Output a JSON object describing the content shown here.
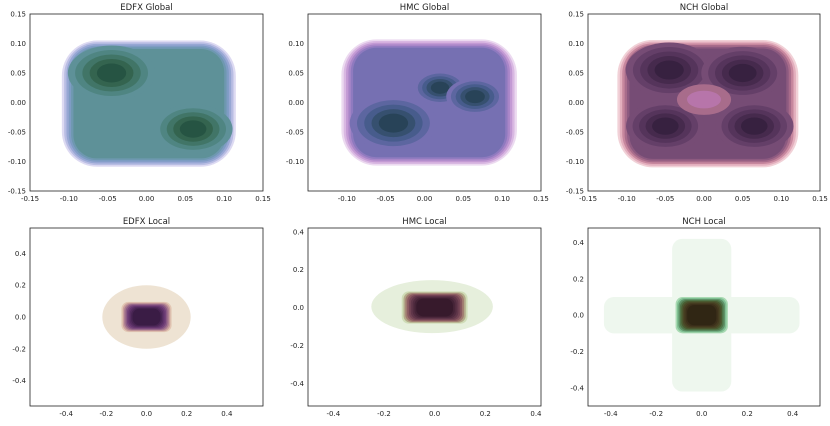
{
  "chart_data": [
    {
      "type": "kde-contour",
      "title": "EDFX Global",
      "xlim": [
        -0.15,
        0.15
      ],
      "ylim": [
        -0.15,
        0.15
      ],
      "xticks": [
        "-0.15",
        "-0.10",
        "-0.05",
        "0.00",
        "0.05",
        "0.10",
        "0.15"
      ],
      "yticks": [
        "-0.15",
        "-0.10",
        "-0.05",
        "0.00",
        "0.05",
        "0.10",
        "0.15"
      ],
      "palette": [
        "#dddaf2",
        "#b9bde3",
        "#97a7d4",
        "#7f9cc4",
        "#6e98b0",
        "#5e9198",
        "#4f8582",
        "#417567",
        "#34644f",
        "#265443"
      ],
      "support": {
        "cx": 0.003,
        "cy": -0.002,
        "rx": 0.112,
        "ry": 0.107
      },
      "modes": [
        {
          "x": -0.045,
          "y": 0.05,
          "w": 1.0
        },
        {
          "x": 0.06,
          "y": -0.045,
          "w": 0.9
        }
      ]
    },
    {
      "type": "kde-contour",
      "title": "HMC Global",
      "xlim": [
        -0.15,
        0.15
      ],
      "ylim": [
        -0.15,
        0.15
      ],
      "xticks": [
        "-0.10",
        "-0.05",
        "0.00",
        "0.05",
        "0.10",
        "0.15"
      ],
      "yticks": [
        "-0.10",
        "-0.05",
        "0.00",
        "0.05",
        "0.10"
      ],
      "palette": [
        "#ecdaf0",
        "#d9b8e2",
        "#c39ad4",
        "#a986c8",
        "#8f7abf",
        "#7670b2",
        "#5c66a0",
        "#475c8c",
        "#36506f",
        "#284358"
      ],
      "support": {
        "cx": 0.006,
        "cy": 0.0,
        "rx": 0.113,
        "ry": 0.107
      },
      "modes": [
        {
          "x": -0.04,
          "y": -0.035,
          "w": 1.0
        },
        {
          "x": 0.02,
          "y": 0.025,
          "w": 0.6
        },
        {
          "x": 0.065,
          "y": 0.01,
          "w": 0.65
        }
      ]
    },
    {
      "type": "kde-contour",
      "title": "NCH Global",
      "xlim": [
        -0.15,
        0.15
      ],
      "ylim": [
        -0.15,
        0.15
      ],
      "xticks": [
        "-0.15",
        "-0.10",
        "-0.05",
        "0.00",
        "0.05",
        "0.10",
        "0.15"
      ],
      "yticks": [
        "-0.15",
        "-0.10",
        "-0.05",
        "0.00",
        "0.05",
        "0.10",
        "0.15"
      ],
      "palette": [
        "#f1d1d7",
        "#e3aebd",
        "#c7879e",
        "#a86c8b",
        "#8d5a80",
        "#764c75",
        "#643f68",
        "#55345b",
        "#462a4d",
        "#372140"
      ],
      "support": {
        "cx": 0.005,
        "cy": -0.002,
        "rx": 0.117,
        "ry": 0.108
      },
      "modes": [
        {
          "x": -0.045,
          "y": 0.055,
          "w": 1.0
        },
        {
          "x": 0.05,
          "y": 0.05,
          "w": 0.95
        },
        {
          "x": -0.05,
          "y": -0.04,
          "w": 0.9
        },
        {
          "x": 0.065,
          "y": -0.04,
          "w": 0.9
        }
      ],
      "hole": {
        "x": 0.0,
        "y": 0.005,
        "color": "#b775aa"
      }
    },
    {
      "type": "kde-contour",
      "title": "EDFX Local",
      "xlim": [
        -0.58,
        0.58
      ],
      "ylim": [
        -0.56,
        0.56
      ],
      "xticks": [
        "-0.4",
        "-0.2",
        "0.0",
        "0.2",
        "0.4"
      ],
      "yticks": [
        "-0.4",
        "-0.2",
        "0.0",
        "0.2",
        "0.4"
      ],
      "palette": [
        "#eee3d3",
        "#e2c6b3",
        "#c99f9c",
        "#a97a8f",
        "#8b5b85",
        "#74437a",
        "#63356d",
        "#542c5f",
        "#472452",
        "#3a1c45"
      ],
      "outer": {
        "cx": 0.0,
        "cy": 0.0,
        "rx": 0.22,
        "ry": 0.2
      },
      "core": {
        "cx": 0.0,
        "cy": 0.0,
        "hx": 0.125,
        "hy": 0.095
      }
    },
    {
      "type": "kde-contour",
      "title": "HMC Local",
      "xlim": [
        -0.5,
        0.42
      ],
      "ylim": [
        -0.52,
        0.42
      ],
      "xticks": [
        "-0.4",
        "-0.2",
        "0.0",
        "0.2",
        "0.4"
      ],
      "yticks": [
        "-0.4",
        "-0.2",
        "0.0",
        "0.2",
        "0.4"
      ],
      "palette": [
        "#e6efdc",
        "#cfdcb6",
        "#b3a989",
        "#a07a70",
        "#8a5961",
        "#744555",
        "#61374a",
        "#522c40",
        "#442336",
        "#371a2c"
      ],
      "outer": {
        "cx": -0.01,
        "cy": 0.005,
        "rx": 0.24,
        "ry": 0.14
      },
      "core": {
        "cx": 0.0,
        "cy": 0.0,
        "hx": 0.13,
        "hy": 0.085
      }
    },
    {
      "type": "kde-contour",
      "title": "NCH Local",
      "xlim": [
        -0.5,
        0.52
      ],
      "ylim": [
        -0.5,
        0.48
      ],
      "xticks": [
        "-0.4",
        "-0.2",
        "0.0",
        "0.2",
        "0.4"
      ],
      "yticks": [
        "-0.4",
        "-0.2",
        "0.0",
        "0.2",
        "0.4"
      ],
      "palette": [
        "#eef7ee",
        "#a9dab3",
        "#7fbf92",
        "#5f9268",
        "#4f7548",
        "#4a5a30",
        "#4a4726",
        "#443a1f",
        "#3b2f1a",
        "#302614"
      ],
      "outer": {
        "cx": 0.0,
        "cy": 0.0,
        "rx": 0.43,
        "ry": 0.42
      },
      "cross": {
        "w": 0.13,
        "h": 0.1
      },
      "core": {
        "cx": 0.0,
        "cy": 0.0,
        "hx": 0.115,
        "hy": 0.1
      }
    }
  ]
}
